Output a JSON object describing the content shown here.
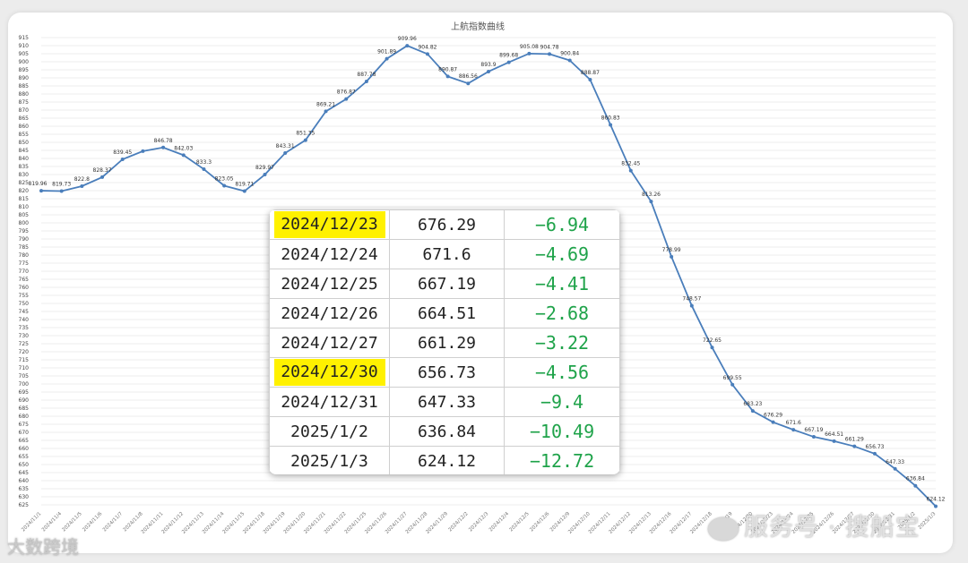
{
  "chart_data": {
    "type": "line",
    "title": "上航指数曲线",
    "color": "#4a7ebb",
    "ylim": [
      625,
      915
    ],
    "ytick_step": 5,
    "grid": true,
    "x": [
      "2024/11/1",
      "2024/11/4",
      "2024/11/5",
      "2024/11/6",
      "2024/11/7",
      "2024/11/8",
      "2024/11/11",
      "2024/11/12",
      "2024/11/13",
      "2024/11/14",
      "2024/11/15",
      "2024/11/18",
      "2024/11/19",
      "2024/11/20",
      "2024/11/21",
      "2024/11/22",
      "2024/11/25",
      "2024/11/26",
      "2024/11/27",
      "2024/11/28",
      "2024/11/29",
      "2024/12/2",
      "2024/12/3",
      "2024/12/4",
      "2024/12/5",
      "2024/12/6",
      "2024/12/9",
      "2024/12/10",
      "2024/12/11",
      "2024/12/12",
      "2024/12/13",
      "2024/12/16",
      "2024/12/17",
      "2024/12/18",
      "2024/12/19",
      "2024/12/20",
      "2024/12/23",
      "2024/12/24",
      "2024/12/25",
      "2024/12/26",
      "2024/12/27",
      "2024/12/30",
      "2024/12/31",
      "2025/1/2",
      "2025/1/3"
    ],
    "values": [
      819.96,
      819.73,
      822.8,
      828.37,
      839.45,
      844.5,
      846.78,
      842.03,
      833.3,
      823.05,
      819.71,
      829.97,
      843.31,
      851.35,
      869.21,
      876.87,
      887.78,
      901.89,
      909.96,
      904.82,
      890.87,
      886.56,
      893.9,
      899.68,
      905.08,
      904.78,
      900.84,
      888.87,
      860.83,
      832.45,
      813.26,
      778.99,
      748.57,
      722.65,
      699.55,
      683.23,
      676.29,
      671.6,
      667.19,
      664.51,
      661.29,
      656.73,
      647.33,
      636.84,
      624.12
    ],
    "point_labels": [
      "819.96",
      "819.73",
      "822.8",
      "828.37",
      "839.45",
      "",
      "846.78",
      "842.03",
      "833.3",
      "823.05",
      "819.71",
      "829.97",
      "843.31",
      "851.35",
      "869.21",
      "876.87",
      "887.78",
      "901.89",
      "909.96",
      "904.82",
      "890.87",
      "886.56",
      "893.9",
      "899.68",
      "905.08",
      "904.78",
      "900.84",
      "888.87",
      "860.83",
      "832.45",
      "813.26",
      "778.99",
      "748.57",
      "722.65",
      "699.55",
      "683.23",
      "676.29",
      "671.6",
      "667.19",
      "664.51",
      "661.29",
      "656.73",
      "647.33",
      "636.84",
      "624.12"
    ]
  },
  "table": {
    "highlight_color": "#fff100",
    "change_color": "#1fa34a",
    "rows": [
      {
        "date": "2024/12/23",
        "value": "676.29",
        "change": "−6.94",
        "highlight": true
      },
      {
        "date": "2024/12/24",
        "value": "671.6",
        "change": "−4.69",
        "highlight": false
      },
      {
        "date": "2024/12/25",
        "value": "667.19",
        "change": "−4.41",
        "highlight": false
      },
      {
        "date": "2024/12/26",
        "value": "664.51",
        "change": "−2.68",
        "highlight": false
      },
      {
        "date": "2024/12/27",
        "value": "661.29",
        "change": "−3.22",
        "highlight": false
      },
      {
        "date": "2024/12/30",
        "value": "656.73",
        "change": "−4.56",
        "highlight": true
      },
      {
        "date": "2024/12/31",
        "value": "647.33",
        "change": "−9.4",
        "highlight": false
      },
      {
        "date": "2025/1/2",
        "value": "636.84",
        "change": "−10.49",
        "highlight": false
      },
      {
        "date": "2025/1/3",
        "value": "624.12",
        "change": "−12.72",
        "highlight": false
      }
    ]
  },
  "watermarks": {
    "left": "大数跨境",
    "right": "服务号 · 搜船宝"
  }
}
